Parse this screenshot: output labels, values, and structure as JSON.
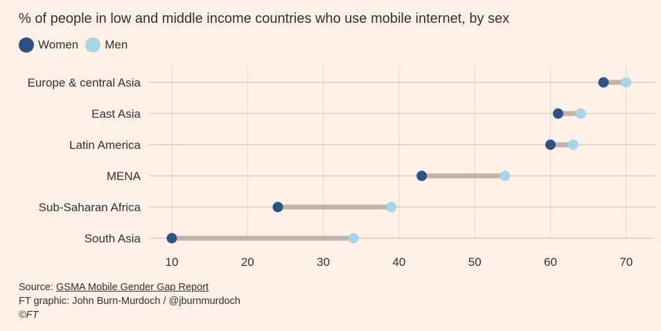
{
  "header": {
    "title": "% of people in low and middle income countries who use mobile internet, by sex"
  },
  "legend": [
    {
      "label": "Women",
      "color": "#2d5283"
    },
    {
      "label": "Men",
      "color": "#a8d4e6"
    }
  ],
  "colors": {
    "background": "#fdf0e6",
    "gridline": "#e2d7ce",
    "rowline": "#cbbcb2",
    "connector": "#bfb3aa",
    "women": "#2d5283",
    "men": "#a8d4e6",
    "text": "#33302e"
  },
  "chart_data": {
    "type": "dumbbell",
    "title": "% of people in low and middle income countries who use mobile internet, by sex",
    "xlabel": "",
    "ylabel": "",
    "xlim": [
      7,
      74
    ],
    "xticks": [
      10,
      20,
      30,
      40,
      50,
      60,
      70
    ],
    "categories": [
      "Europe & central Asia",
      "East Asia",
      "Latin America",
      "MENA",
      "Sub-Saharan Africa",
      "South Asia"
    ],
    "series": [
      {
        "name": "Women",
        "values": [
          67,
          61,
          60,
          43,
          24,
          10
        ]
      },
      {
        "name": "Men",
        "values": [
          70,
          64,
          63,
          54,
          39,
          34
        ]
      }
    ],
    "legend_position": "top-left"
  },
  "footer": {
    "source_prefix": "Source: ",
    "source_link": "GSMA Mobile Gender Gap Report",
    "credit": "FT graphic: John Burn-Murdoch / @jburnmurdoch",
    "copyright": "©FT"
  }
}
